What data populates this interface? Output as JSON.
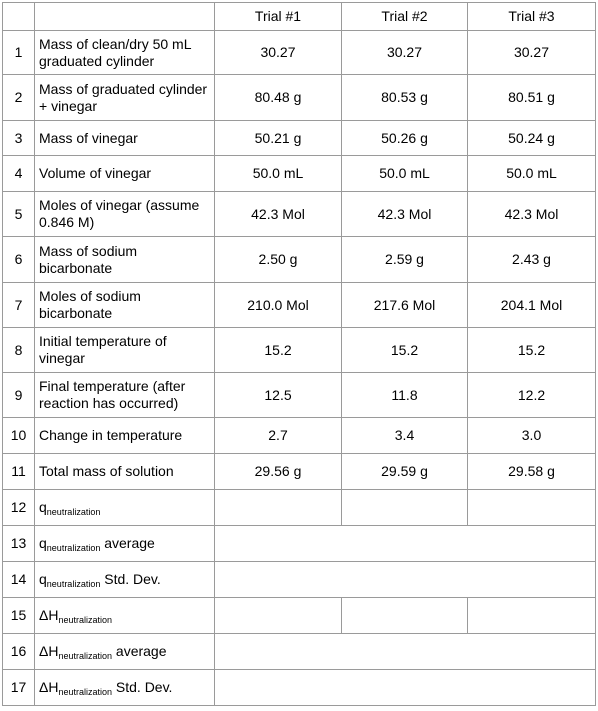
{
  "headers": [
    "Trial #1",
    "Trial #2",
    "Trial #3"
  ],
  "rows": [
    {
      "num": "1",
      "label": "Mass of clean/dry 50 mL graduated cylinder",
      "values": [
        "30.27",
        "30.27",
        "30.27"
      ]
    },
    {
      "num": "2",
      "label": "Mass of graduated cylinder + vinegar",
      "values": [
        "80.48 g",
        "80.53 g",
        "80.51 g"
      ]
    },
    {
      "num": "3",
      "label": "Mass of vinegar",
      "values": [
        "50.21 g",
        "50.26 g",
        "50.24 g"
      ]
    },
    {
      "num": "4",
      "label": "Volume of vinegar",
      "values": [
        "50.0 mL",
        "50.0 mL",
        "50.0 mL"
      ]
    },
    {
      "num": "5",
      "label": "Moles of vinegar (assume 0.846 M)",
      "values": [
        "42.3 Mol",
        "42.3 Mol",
        "42.3 Mol"
      ]
    },
    {
      "num": "6",
      "label": "Mass of sodium bicarbonate",
      "values": [
        "2.50 g",
        "2.59 g",
        "2.43 g"
      ]
    },
    {
      "num": "7",
      "label": "Moles of sodium bicarbonate",
      "values": [
        "210.0 Mol",
        "217.6 Mol",
        "204.1 Mol"
      ]
    },
    {
      "num": "8",
      "label": "Initial temperature of vinegar",
      "values": [
        "15.2",
        "15.2",
        "15.2"
      ]
    },
    {
      "num": "9",
      "label": "Final temperature (after reaction has occurred)",
      "values": [
        "12.5",
        "11.8",
        "12.2"
      ]
    },
    {
      "num": "10",
      "label": "Change in temperature",
      "values": [
        "2.7",
        "3.4",
        "3.0"
      ]
    },
    {
      "num": "11",
      "label": "Total mass of solution",
      "values": [
        "29.56 g",
        "29.59 g",
        "29.58 g"
      ]
    }
  ],
  "extra_rows": [
    {
      "num": "12",
      "main": "q",
      "sub": "neutralization",
      "suffix": ""
    },
    {
      "num": "13",
      "main": "q",
      "sub": "neutralization",
      "suffix": " average"
    },
    {
      "num": "14",
      "main": "q",
      "sub": "neutralization",
      "suffix": " Std. Dev."
    },
    {
      "num": "15",
      "main": "ΔH",
      "sub": "neutralization",
      "suffix": ""
    },
    {
      "num": "16",
      "main": "ΔH",
      "sub": "neutralization",
      "suffix": " average"
    },
    {
      "num": "17",
      "main": "ΔH",
      "sub": "neutralization",
      "suffix": " Std. Dev."
    }
  ]
}
